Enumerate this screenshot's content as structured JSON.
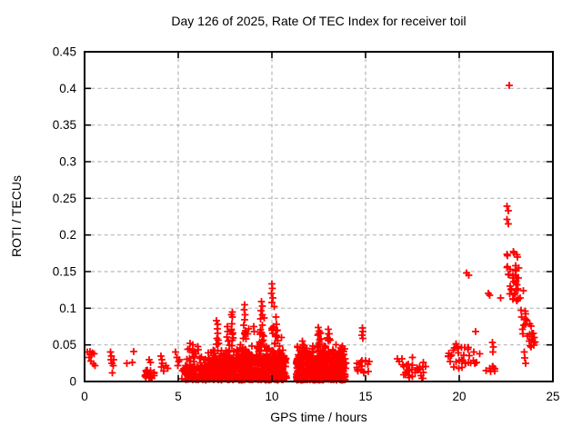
{
  "title": "Day 126 of 2025, Rate Of TEC Index for receiver toil",
  "xlabel": "GPS time / hours",
  "ylabel": "ROTI / TECUs",
  "chart_data": {
    "type": "scatter",
    "marker": "plus",
    "marker_color": "#ff0000",
    "grid": true,
    "grid_color": "#b8b8b8",
    "border_color": "#000000",
    "xlim": [
      0,
      25
    ],
    "ylim": [
      0,
      0.45
    ],
    "xtick_values": [
      0,
      5,
      10,
      15,
      20,
      25
    ],
    "xtick_labels": [
      "0",
      "5",
      "10",
      "15",
      "20",
      "25"
    ],
    "ytick_values": [
      0,
      0.05,
      0.1,
      0.15,
      0.2,
      0.25,
      0.3,
      0.35,
      0.4,
      0.45
    ],
    "ytick_labels": [
      "0",
      "0.05",
      "0.1",
      "0.15",
      "0.2",
      "0.25",
      "0.3",
      "0.35",
      "0.4",
      "0.45"
    ],
    "points": [
      [
        0.15,
        0.04
      ],
      [
        0.28,
        0.041
      ],
      [
        0.33,
        0.037
      ],
      [
        0.42,
        0.039
      ],
      [
        0.25,
        0.033
      ],
      [
        0.33,
        0.028
      ],
      [
        0.45,
        0.024
      ],
      [
        0.55,
        0.022
      ],
      [
        0.5,
        0.038
      ],
      [
        1.38,
        0.04
      ],
      [
        1.42,
        0.035
      ],
      [
        1.4,
        0.03
      ],
      [
        1.46,
        0.025
      ],
      [
        1.52,
        0.022
      ],
      [
        1.48,
        0.012
      ],
      [
        1.56,
        0.03
      ],
      [
        2.25,
        0.025
      ],
      [
        2.55,
        0.026
      ],
      [
        2.62,
        0.041
      ],
      [
        3.45,
        0.03
      ],
      [
        3.52,
        0.026
      ],
      [
        4.08,
        0.035
      ],
      [
        4.12,
        0.03
      ],
      [
        4.15,
        0.025
      ],
      [
        4.1,
        0.02
      ],
      [
        4.22,
        0.014
      ],
      [
        4.35,
        0.022
      ],
      [
        4.45,
        0.018
      ],
      [
        4.85,
        0.04
      ],
      [
        4.92,
        0.033
      ],
      [
        5.02,
        0.027
      ],
      [
        4.97,
        0.022
      ],
      [
        5.08,
        0.03
      ],
      [
        5.62,
        0.052
      ],
      [
        5.78,
        0.05
      ],
      [
        6.05,
        0.048
      ],
      [
        7.05,
        0.083
      ],
      [
        7.1,
        0.078
      ],
      [
        7.08,
        0.072
      ],
      [
        7.12,
        0.066
      ],
      [
        7.62,
        0.075
      ],
      [
        7.65,
        0.068
      ],
      [
        7.6,
        0.061
      ],
      [
        7.68,
        0.055
      ],
      [
        7.88,
        0.095
      ],
      [
        7.85,
        0.091
      ],
      [
        7.9,
        0.088
      ],
      [
        7.87,
        0.079
      ],
      [
        8.55,
        0.105
      ],
      [
        8.52,
        0.098
      ],
      [
        8.58,
        0.091
      ],
      [
        8.55,
        0.084
      ],
      [
        8.5,
        0.077
      ],
      [
        8.75,
        0.072
      ],
      [
        8.72,
        0.065
      ],
      [
        9.02,
        0.075
      ],
      [
        9.05,
        0.068
      ],
      [
        9.45,
        0.109
      ],
      [
        9.5,
        0.103
      ],
      [
        9.42,
        0.097
      ],
      [
        9.48,
        0.091
      ],
      [
        10.0,
        0.133
      ],
      [
        10.02,
        0.127
      ],
      [
        9.98,
        0.12
      ],
      [
        10.05,
        0.114
      ],
      [
        10.0,
        0.108
      ],
      [
        10.12,
        0.102
      ],
      [
        10.22,
        0.088
      ],
      [
        10.25,
        0.078
      ],
      [
        10.28,
        0.07
      ],
      [
        10.25,
        0.062
      ],
      [
        10.32,
        0.056
      ],
      [
        10.5,
        0.06
      ],
      [
        11.62,
        0.055
      ],
      [
        11.66,
        0.05
      ],
      [
        12.48,
        0.074
      ],
      [
        12.52,
        0.069
      ],
      [
        12.45,
        0.063
      ],
      [
        12.56,
        0.057
      ],
      [
        13.0,
        0.071
      ],
      [
        13.05,
        0.065
      ],
      [
        12.98,
        0.058
      ],
      [
        13.42,
        0.05
      ],
      [
        13.7,
        0.046
      ],
      [
        14.82,
        0.073
      ],
      [
        14.85,
        0.068
      ],
      [
        14.8,
        0.063
      ],
      [
        14.86,
        0.059
      ],
      [
        15.2,
        0.027
      ],
      [
        16.7,
        0.031
      ],
      [
        16.8,
        0.027
      ],
      [
        16.95,
        0.031
      ],
      [
        17.5,
        0.033
      ],
      [
        20.38,
        0.148
      ],
      [
        20.52,
        0.145
      ],
      [
        20.88,
        0.068
      ],
      [
        21.55,
        0.12
      ],
      [
        21.62,
        0.118
      ],
      [
        21.78,
        0.053
      ],
      [
        21.82,
        0.047
      ],
      [
        21.8,
        0.04
      ],
      [
        22.2,
        0.114
      ],
      [
        22.66,
        0.404
      ],
      [
        22.55,
        0.239
      ],
      [
        22.62,
        0.233
      ],
      [
        22.56,
        0.221
      ],
      [
        22.62,
        0.215
      ],
      [
        23.48,
        0.04
      ],
      [
        23.5,
        0.032
      ],
      [
        23.55,
        0.025
      ],
      [
        23.95,
        0.066
      ],
      [
        24.0,
        0.06
      ],
      [
        24.05,
        0.054
      ],
      [
        23.9,
        0.057
      ]
    ],
    "clusters": [
      {
        "x": [
          3.18,
          3.75
        ],
        "y": [
          0.004,
          0.018
        ],
        "n": 22,
        "bias": 1.2
      },
      {
        "x": [
          5.2,
          6.5
        ],
        "y": [
          0.002,
          0.022
        ],
        "n": 85,
        "bias": 1.2
      },
      {
        "x": [
          5.45,
          6.45
        ],
        "y": [
          0.02,
          0.046
        ],
        "n": 26,
        "bias": 1.5
      },
      {
        "x": [
          6.5,
          10.78
        ],
        "y": [
          0.002,
          0.032
        ],
        "n": 620,
        "bias": 1.35
      },
      {
        "x": [
          6.55,
          10.7
        ],
        "y": [
          0.03,
          0.05
        ],
        "n": 130,
        "bias": 1.5
      },
      {
        "x": [
          9.32,
          9.62
        ],
        "y": [
          0.05,
          0.088
        ],
        "n": 16,
        "bias": 1.2
      },
      {
        "x": [
          10.0,
          10.35
        ],
        "y": [
          0.05,
          0.085
        ],
        "n": 12,
        "bias": 1.2
      },
      {
        "x": [
          7.82,
          7.97
        ],
        "y": [
          0.05,
          0.072
        ],
        "n": 7,
        "bias": 1
      },
      {
        "x": [
          8.45,
          8.62
        ],
        "y": [
          0.05,
          0.072
        ],
        "n": 7,
        "bias": 1
      },
      {
        "x": [
          7.0,
          7.18
        ],
        "y": [
          0.045,
          0.06
        ],
        "n": 5,
        "bias": 1
      },
      {
        "x": [
          11.3,
          13.95
        ],
        "y": [
          0.002,
          0.032
        ],
        "n": 440,
        "bias": 1.35
      },
      {
        "x": [
          11.35,
          13.9
        ],
        "y": [
          0.03,
          0.05
        ],
        "n": 95,
        "bias": 1.5
      },
      {
        "x": [
          12.4,
          12.62
        ],
        "y": [
          0.05,
          0.068
        ],
        "n": 7,
        "bias": 1
      },
      {
        "x": [
          12.95,
          13.1
        ],
        "y": [
          0.05,
          0.065
        ],
        "n": 5,
        "bias": 1
      },
      {
        "x": [
          14.5,
          15.15
        ],
        "y": [
          0.012,
          0.029
        ],
        "n": 14,
        "bias": 1
      },
      {
        "x": [
          16.95,
          18.25
        ],
        "y": [
          0.004,
          0.027
        ],
        "n": 32,
        "bias": 1.3
      },
      {
        "x": [
          19.4,
          20.55
        ],
        "y": [
          0.018,
          0.053
        ],
        "n": 30,
        "bias": 1.1
      },
      {
        "x": [
          20.6,
          21.1
        ],
        "y": [
          0.024,
          0.046
        ],
        "n": 7,
        "bias": 1
      },
      {
        "x": [
          21.35,
          21.9
        ],
        "y": [
          0.012,
          0.021
        ],
        "n": 8,
        "bias": 1
      },
      {
        "x": [
          22.5,
          23.2
        ],
        "y": [
          0.155,
          0.178
        ],
        "n": 9,
        "bias": 1
      },
      {
        "x": [
          22.6,
          23.35
        ],
        "y": [
          0.125,
          0.155
        ],
        "n": 16,
        "bias": 1
      },
      {
        "x": [
          22.7,
          23.5
        ],
        "y": [
          0.11,
          0.137
        ],
        "n": 16,
        "bias": 1
      },
      {
        "x": [
          23.2,
          23.75
        ],
        "y": [
          0.082,
          0.098
        ],
        "n": 7,
        "bias": 1
      },
      {
        "x": [
          23.3,
          23.9
        ],
        "y": [
          0.062,
          0.079
        ],
        "n": 7,
        "bias": 1
      },
      {
        "x": [
          23.65,
          24.05
        ],
        "y": [
          0.046,
          0.066
        ],
        "n": 9,
        "bias": 1
      }
    ]
  }
}
